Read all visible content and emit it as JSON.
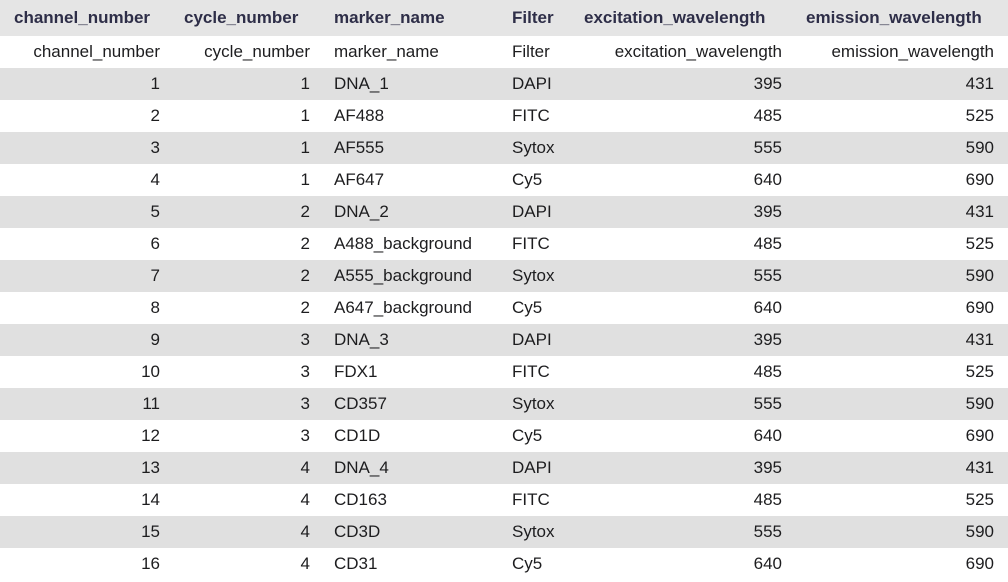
{
  "columns": [
    "channel_number",
    "cycle_number",
    "marker_name",
    "Filter",
    "excitation_wavelength",
    "emission_wavelength"
  ],
  "rows": [
    [
      "channel_number",
      "cycle_number",
      "marker_name",
      "Filter",
      "excitation_wavelength",
      "emission_wavelength"
    ],
    [
      "1",
      "1",
      "DNA_1",
      "DAPI",
      "395",
      "431"
    ],
    [
      "2",
      "1",
      "AF488",
      "FITC",
      "485",
      "525"
    ],
    [
      "3",
      "1",
      "AF555",
      "Sytox",
      "555",
      "590"
    ],
    [
      "4",
      "1",
      "AF647",
      "Cy5",
      "640",
      "690"
    ],
    [
      "5",
      "2",
      "DNA_2",
      "DAPI",
      "395",
      "431"
    ],
    [
      "6",
      "2",
      "A488_background",
      "FITC",
      "485",
      "525"
    ],
    [
      "7",
      "2",
      "A555_background",
      "Sytox",
      "555",
      "590"
    ],
    [
      "8",
      "2",
      "A647_background",
      "Cy5",
      "640",
      "690"
    ],
    [
      "9",
      "3",
      "DNA_3",
      "DAPI",
      "395",
      "431"
    ],
    [
      "10",
      "3",
      "FDX1",
      "FITC",
      "485",
      "525"
    ],
    [
      "11",
      "3",
      "CD357",
      "Sytox",
      "555",
      "590"
    ],
    [
      "12",
      "3",
      "CD1D",
      "Cy5",
      "640",
      "690"
    ],
    [
      "13",
      "4",
      "DNA_4",
      "DAPI",
      "395",
      "431"
    ],
    [
      "14",
      "4",
      "CD163",
      "FITC",
      "485",
      "525"
    ],
    [
      "15",
      "4",
      "CD3D",
      "Sytox",
      "555",
      "590"
    ],
    [
      "16",
      "4",
      "CD31",
      "Cy5",
      "640",
      "690"
    ]
  ],
  "colors": {
    "header_bg": "#e5e5e5",
    "header_text": "#2e2e48",
    "stripe_bg": "#e0e0e0",
    "row_bg": "#ffffff",
    "text": "#1d1d1f"
  }
}
